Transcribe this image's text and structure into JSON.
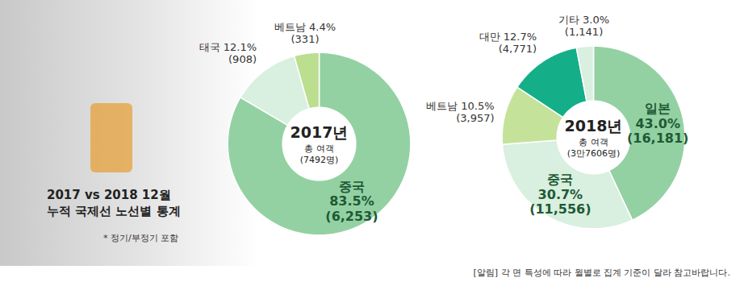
{
  "title": "2017 vs 2018 12월\n누적 국제선 노선별 통계",
  "subtitle": "* 정기/부정기 포함",
  "note": "[알림] 각 면 특성에 따라 월별로 집계 기준이 달라 참고바랍니다.",
  "chart_data": [
    {
      "type": "pie",
      "title": "2017년",
      "center_label": "총 여객",
      "total_label": "(7492명)",
      "categories": [
        "중국",
        "태국",
        "베트남"
      ],
      "values": [
        83.5,
        12.1,
        4.4
      ],
      "value_labels": [
        "83.5%",
        "12.1%",
        "4.4%"
      ],
      "count_labels": [
        "(6,253)",
        "(908)",
        "(331)"
      ],
      "colors": [
        "#93d1a3",
        "#d9efdf",
        "#bcde8f"
      ],
      "data_labels": true
    },
    {
      "type": "pie",
      "title": "2018년",
      "center_label": "총 여객",
      "total_label": "(3만7606명)",
      "categories": [
        "일본",
        "중국",
        "베트남",
        "대만",
        "기타"
      ],
      "values": [
        43.0,
        30.7,
        10.5,
        12.7,
        3.0
      ],
      "value_labels": [
        "43.0%",
        "30.7%",
        "10.5%",
        "12.7%",
        "3.0%"
      ],
      "count_labels": [
        "(16,181)",
        "(11,556)",
        "(3,957)",
        "(4,771)",
        "(1,141)"
      ],
      "colors": [
        "#93d1a3",
        "#d9efdf",
        "#c5e29a",
        "#14ae88",
        "#d9efdf"
      ],
      "data_labels": true
    }
  ]
}
